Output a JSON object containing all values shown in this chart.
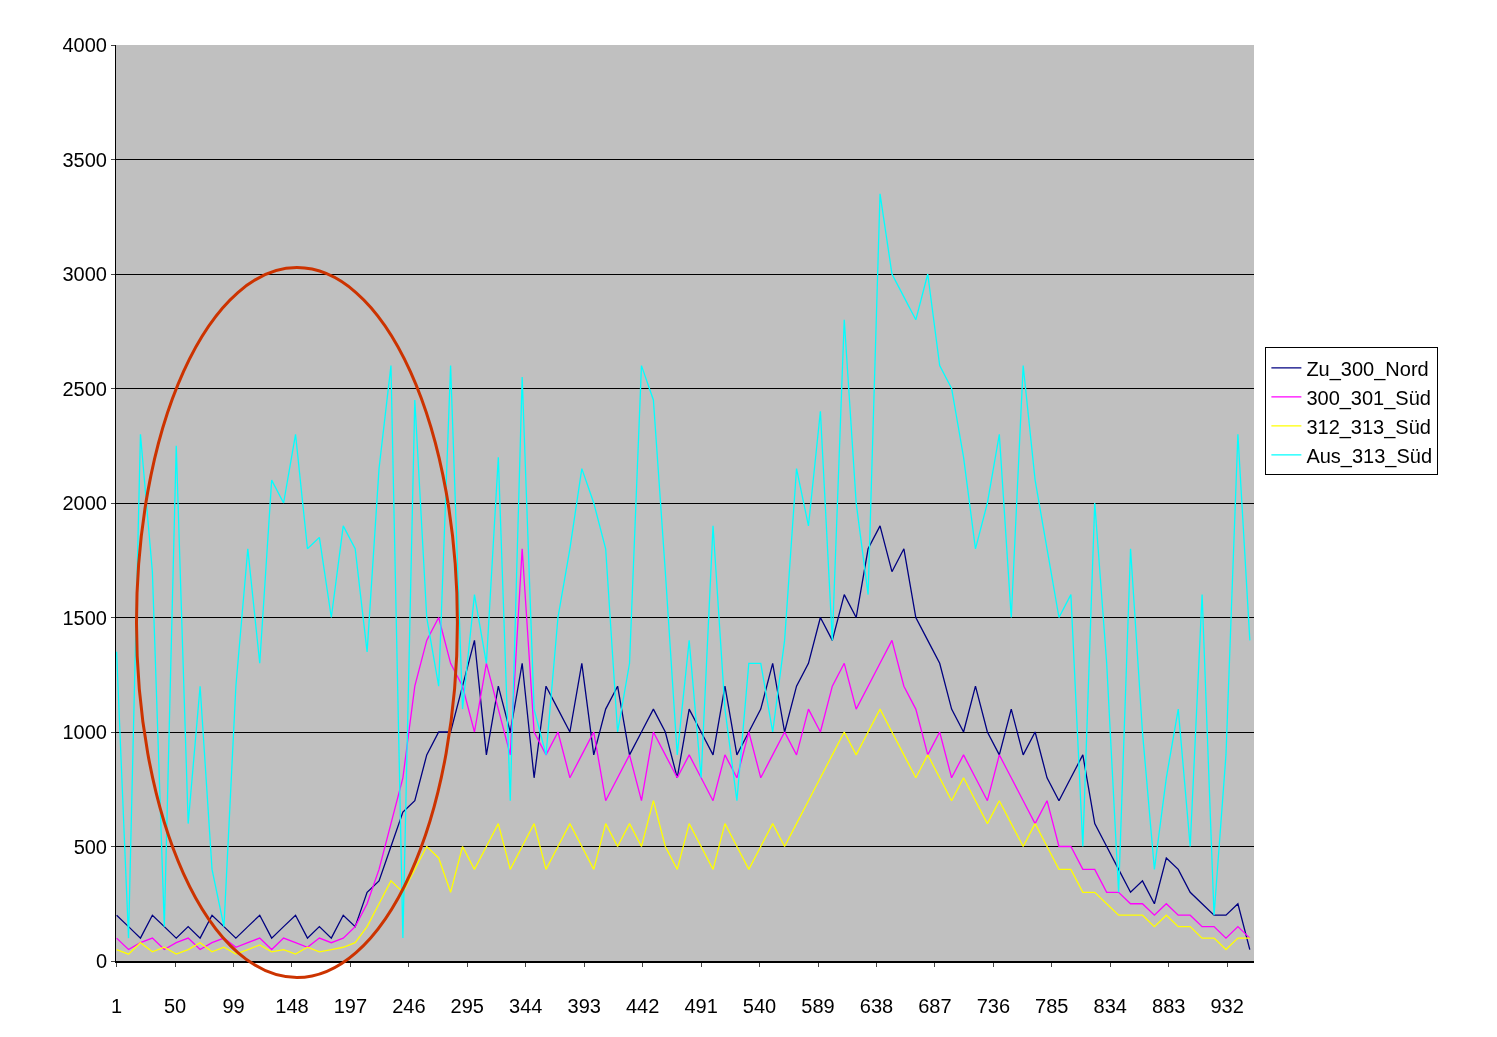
{
  "chart_data": {
    "type": "line",
    "x": [
      1,
      11,
      21,
      31,
      41,
      51,
      61,
      71,
      81,
      91,
      101,
      111,
      121,
      131,
      141,
      151,
      161,
      171,
      181,
      191,
      201,
      211,
      221,
      231,
      241,
      251,
      261,
      271,
      281,
      291,
      301,
      311,
      321,
      331,
      341,
      351,
      361,
      371,
      381,
      391,
      401,
      411,
      421,
      431,
      441,
      451,
      461,
      471,
      481,
      491,
      501,
      511,
      521,
      531,
      541,
      551,
      561,
      571,
      581,
      591,
      601,
      611,
      621,
      631,
      641,
      651,
      661,
      671,
      681,
      691,
      701,
      711,
      721,
      731,
      741,
      751,
      761,
      771,
      781,
      791,
      801,
      811,
      821,
      831,
      841,
      851,
      861,
      871,
      881,
      891,
      901,
      911,
      921,
      931,
      941,
      951
    ],
    "series": [
      {
        "name": "Zu_300_Nord",
        "color": "#000080",
        "values": [
          200,
          150,
          100,
          200,
          150,
          100,
          150,
          100,
          200,
          150,
          100,
          150,
          200,
          100,
          150,
          200,
          100,
          150,
          100,
          200,
          150,
          300,
          350,
          500,
          650,
          700,
          900,
          1000,
          1000,
          1200,
          1400,
          900,
          1200,
          1000,
          1300,
          800,
          1200,
          1100,
          1000,
          1300,
          900,
          1100,
          1200,
          900,
          1000,
          1100,
          1000,
          800,
          1100,
          1000,
          900,
          1200,
          900,
          1000,
          1100,
          1300,
          1000,
          1200,
          1300,
          1500,
          1400,
          1600,
          1500,
          1800,
          1900,
          1700,
          1800,
          1500,
          1400,
          1300,
          1100,
          1000,
          1200,
          1000,
          900,
          1100,
          900,
          1000,
          800,
          700,
          800,
          900,
          600,
          500,
          400,
          300,
          350,
          250,
          450,
          400,
          300,
          250,
          200,
          200,
          250,
          50
        ]
      },
      {
        "name": "300_301_Süd",
        "color": "#ff00ff",
        "values": [
          100,
          50,
          80,
          100,
          50,
          80,
          100,
          50,
          80,
          100,
          60,
          80,
          100,
          50,
          100,
          80,
          60,
          100,
          80,
          100,
          150,
          250,
          400,
          600,
          800,
          1200,
          1400,
          1500,
          1300,
          1200,
          1000,
          1300,
          1100,
          900,
          1800,
          1000,
          900,
          1000,
          800,
          900,
          1000,
          700,
          800,
          900,
          700,
          1000,
          900,
          800,
          900,
          800,
          700,
          900,
          800,
          1000,
          800,
          900,
          1000,
          900,
          1100,
          1000,
          1200,
          1300,
          1100,
          1200,
          1300,
          1400,
          1200,
          1100,
          900,
          1000,
          800,
          900,
          800,
          700,
          900,
          800,
          700,
          600,
          700,
          500,
          500,
          400,
          400,
          300,
          300,
          250,
          250,
          200,
          250,
          200,
          200,
          150,
          150,
          100,
          150,
          100
        ]
      },
      {
        "name": "312_313_Süd",
        "color": "#ffff00",
        "values": [
          50,
          30,
          80,
          40,
          60,
          30,
          50,
          80,
          40,
          60,
          30,
          50,
          70,
          40,
          50,
          30,
          60,
          40,
          50,
          60,
          80,
          150,
          250,
          350,
          300,
          400,
          500,
          450,
          300,
          500,
          400,
          500,
          600,
          400,
          500,
          600,
          400,
          500,
          600,
          500,
          400,
          600,
          500,
          600,
          500,
          700,
          500,
          400,
          600,
          500,
          400,
          600,
          500,
          400,
          500,
          600,
          500,
          600,
          700,
          800,
          900,
          1000,
          900,
          1000,
          1100,
          1000,
          900,
          800,
          900,
          800,
          700,
          800,
          700,
          600,
          700,
          600,
          500,
          600,
          500,
          400,
          400,
          300,
          300,
          250,
          200,
          200,
          200,
          150,
          200,
          150,
          150,
          100,
          100,
          50,
          100,
          100
        ]
      },
      {
        "name": "Aus_313_Süd",
        "color": "#00ffff",
        "values": [
          1350,
          100,
          2300,
          1700,
          150,
          2250,
          600,
          1200,
          400,
          150,
          1200,
          1800,
          1300,
          2100,
          2000,
          2300,
          1800,
          1850,
          1500,
          1900,
          1800,
          1350,
          2150,
          2600,
          100,
          2450,
          1500,
          1200,
          2600,
          1100,
          1600,
          1300,
          2200,
          700,
          2550,
          1100,
          900,
          1500,
          1800,
          2150,
          2000,
          1800,
          1000,
          1300,
          2600,
          2450,
          1700,
          900,
          1400,
          800,
          1900,
          1100,
          700,
          1300,
          1300,
          1000,
          1400,
          2150,
          1900,
          2400,
          1400,
          2800,
          2000,
          1600,
          3350,
          3000,
          2900,
          2800,
          3000,
          2600,
          2500,
          2200,
          1800,
          2000,
          2300,
          1500,
          2600,
          2100,
          1800,
          1500,
          1600,
          500,
          2000,
          1300,
          300,
          1800,
          1000,
          400,
          800,
          1100,
          500,
          1600,
          200,
          900,
          2300,
          1400
        ]
      }
    ],
    "xlim": [
      0.5,
      954.5
    ],
    "xticks": [
      1,
      50,
      99,
      148,
      197,
      246,
      295,
      344,
      393,
      442,
      491,
      540,
      589,
      638,
      687,
      736,
      785,
      834,
      883,
      932
    ],
    "ylim": [
      0,
      4000
    ],
    "yticks": [
      0,
      500,
      1000,
      1500,
      2000,
      2500,
      3000,
      3500,
      4000
    ],
    "grid": "y",
    "legend": "right",
    "marker": "none",
    "line_style": "solid"
  }
}
